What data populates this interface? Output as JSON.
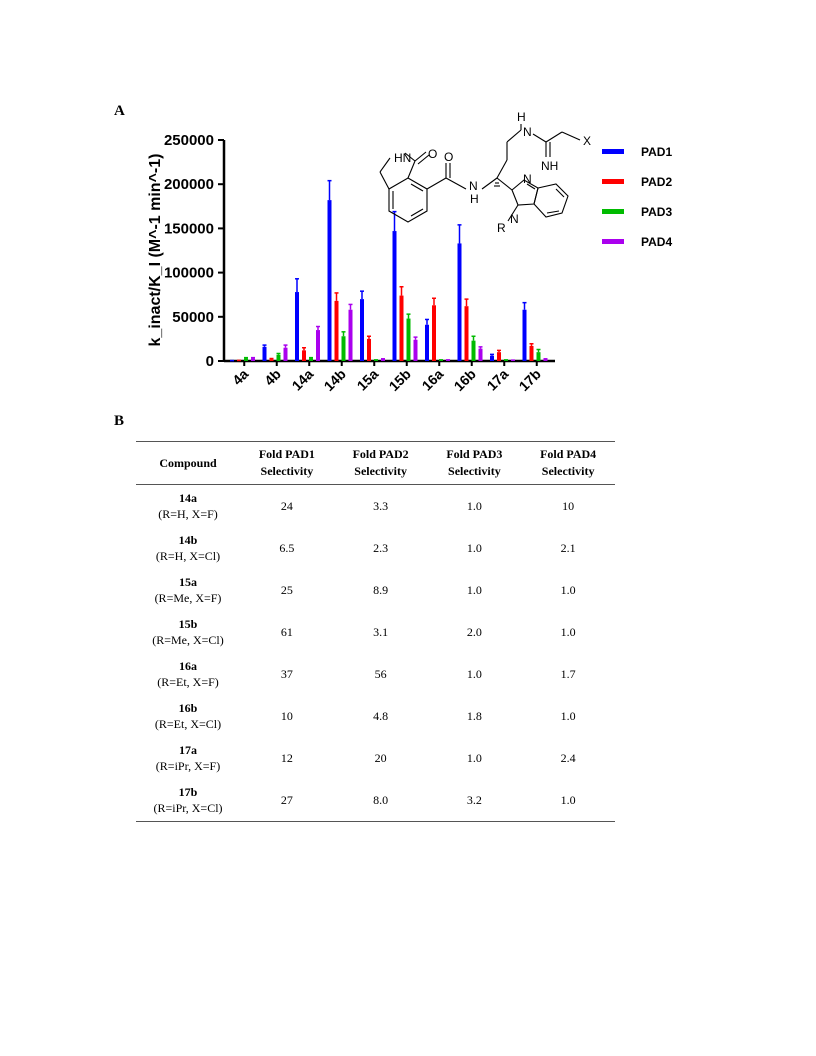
{
  "panels": {
    "a": "A",
    "b": "B"
  },
  "chart_data": {
    "type": "bar",
    "ylabel": "k_inact/K_I (M^-1 min^-1)",
    "ylim": [
      0,
      250000
    ],
    "yticks": [
      "0",
      "50000",
      "100000",
      "150000",
      "200000",
      "250000"
    ],
    "categories": [
      "4a",
      "4b",
      "14a",
      "14b",
      "15a",
      "15b",
      "16a",
      "16b",
      "17a",
      "17b"
    ],
    "series": [
      {
        "name": "PAD1",
        "color": "#0000ff",
        "values": [
          300,
          16000,
          78000,
          182000,
          70000,
          147000,
          41000,
          133000,
          6000,
          58000
        ],
        "errors": [
          200,
          2000,
          15000,
          22000,
          9000,
          22000,
          6000,
          21000,
          1500,
          8000
        ]
      },
      {
        "name": "PAD2",
        "color": "#ff0000",
        "values": [
          500,
          2000,
          12000,
          68000,
          25000,
          74000,
          63000,
          62000,
          10000,
          17000
        ],
        "errors": [
          200,
          800,
          3000,
          9000,
          3000,
          10000,
          8000,
          8000,
          2000,
          2500
        ]
      },
      {
        "name": "PAD3",
        "color": "#00bb00",
        "values": [
          3000,
          7000,
          3000,
          28000,
          1000,
          48000,
          1000,
          23000,
          1000,
          10000
        ],
        "errors": [
          800,
          1500,
          800,
          5000,
          300,
          5000,
          300,
          5000,
          300,
          3000
        ]
      },
      {
        "name": "PAD4",
        "color": "#aa00ee",
        "values": [
          3000,
          15000,
          35000,
          58000,
          2000,
          24000,
          1000,
          14000,
          800,
          2000
        ],
        "errors": [
          800,
          3000,
          4000,
          6000,
          500,
          3000,
          300,
          2000,
          200,
          500
        ]
      }
    ]
  },
  "structure": {
    "labels": {
      "hn": "HN",
      "o1": "O",
      "o2": "O",
      "nh_amide": "N",
      "h_amide": "H",
      "h_top": "H",
      "n_top": "N",
      "x": "X",
      "nh_imine": "NH",
      "n_imid": "N",
      "n_benz": "N",
      "r": "R"
    }
  },
  "table": {
    "headers": [
      [
        "Compound"
      ],
      [
        "Fold PAD1",
        "Selectivity"
      ],
      [
        "Fold PAD2",
        "Selectivity"
      ],
      [
        "Fold PAD3",
        "Selectivity"
      ],
      [
        "Fold PAD4",
        "Selectivity"
      ]
    ],
    "rows": [
      {
        "name": "14a",
        "sub": "(R=H, X=F)",
        "values": [
          "24",
          "3.3",
          "1.0",
          "10"
        ]
      },
      {
        "name": "14b",
        "sub": "(R=H, X=Cl)",
        "values": [
          "6.5",
          "2.3",
          "1.0",
          "2.1"
        ]
      },
      {
        "name": "15a",
        "sub": "(R=Me, X=F)",
        "values": [
          "25",
          "8.9",
          "1.0",
          "1.0"
        ]
      },
      {
        "name": "15b",
        "sub": "(R=Me, X=Cl)",
        "values": [
          "61",
          "3.1",
          "2.0",
          "1.0"
        ]
      },
      {
        "name": "16a",
        "sub": "(R=Et, X=F)",
        "values": [
          "37",
          "56",
          "1.0",
          "1.7"
        ]
      },
      {
        "name": "16b",
        "sub": "(R=Et, X=Cl)",
        "values": [
          "10",
          "4.8",
          "1.8",
          "1.0"
        ]
      },
      {
        "name": "17a",
        "sub": "(R=iPr, X=F)",
        "values": [
          "12",
          "20",
          "1.0",
          "2.4"
        ]
      },
      {
        "name": "17b",
        "sub": "(R=iPr, X=Cl)",
        "values": [
          "27",
          "8.0",
          "3.2",
          "1.0"
        ]
      }
    ]
  }
}
